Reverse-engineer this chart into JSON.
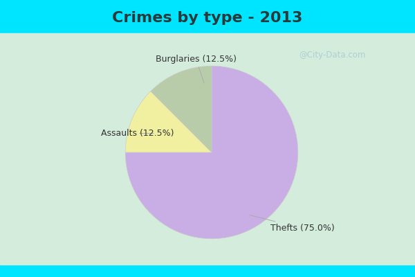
{
  "title": "Crimes by type - 2013",
  "slices": [
    {
      "label": "Thefts (75.0%)",
      "value": 75.0,
      "color": "#c9aee5"
    },
    {
      "label": "Burglaries (12.5%)",
      "value": 12.5,
      "color": "#f0f0a0"
    },
    {
      "label": "Assaults (12.5%)",
      "value": 12.5,
      "color": "#b8ccaa"
    }
  ],
  "startangle": 90,
  "banner_color": "#00e5ff",
  "bg_color_center": "#e8f5ee",
  "bg_color_edge": "#c8e8d8",
  "title_fontsize": 16,
  "title_color": "#2a3a3a",
  "label_fontsize": 9,
  "label_color": "#333333",
  "watermark": "@City-Data.com",
  "watermark_color": "#aaccd8"
}
